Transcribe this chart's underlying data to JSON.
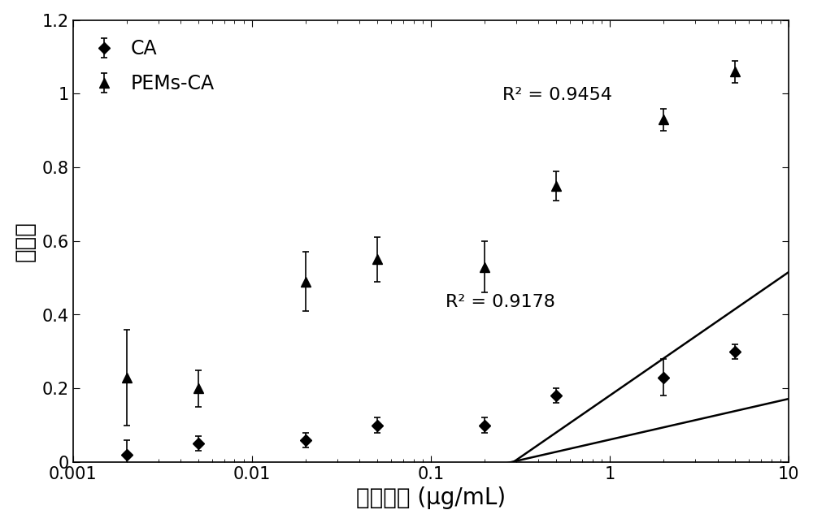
{
  "title": "",
  "xlabel": "抗原浓度 (μg/mL)",
  "ylabel": "吸光度",
  "xlim": [
    0.001,
    10
  ],
  "ylim": [
    0,
    1.2
  ],
  "yticks": [
    0,
    0.2,
    0.4,
    0.6,
    0.8,
    1.0,
    1.2
  ],
  "ytick_labels": [
    "0",
    "0.2",
    "0.4",
    "0.6",
    "0.8",
    "1",
    "1.2"
  ],
  "CA_x": [
    0.002,
    0.005,
    0.02,
    0.05,
    0.2,
    0.5,
    2.0,
    5.0
  ],
  "CA_y": [
    0.02,
    0.05,
    0.06,
    0.1,
    0.1,
    0.18,
    0.23,
    0.3
  ],
  "CA_yerr": [
    0.04,
    0.02,
    0.02,
    0.02,
    0.02,
    0.02,
    0.05,
    0.02
  ],
  "PEM_x": [
    0.002,
    0.005,
    0.02,
    0.05,
    0.2,
    0.5,
    2.0,
    5.0
  ],
  "PEM_y": [
    0.23,
    0.2,
    0.49,
    0.55,
    0.53,
    0.75,
    0.93,
    1.06
  ],
  "PEM_yerr": [
    0.13,
    0.05,
    0.08,
    0.06,
    0.07,
    0.04,
    0.03,
    0.03
  ],
  "CA_r2": "R² = 0.9178",
  "PEM_r2": "R² = 0.9454",
  "CA_fit_slope": 0.1108,
  "CA_fit_intercept": 0.0608,
  "PEM_fit_slope": 0.3352,
  "PEM_fit_intercept": 0.1805,
  "marker_color": "#000000",
  "line_color": "#000000",
  "bg_color": "#ffffff",
  "font_size_label": 20,
  "font_size_tick": 15,
  "font_size_legend": 17,
  "font_size_annot": 16
}
